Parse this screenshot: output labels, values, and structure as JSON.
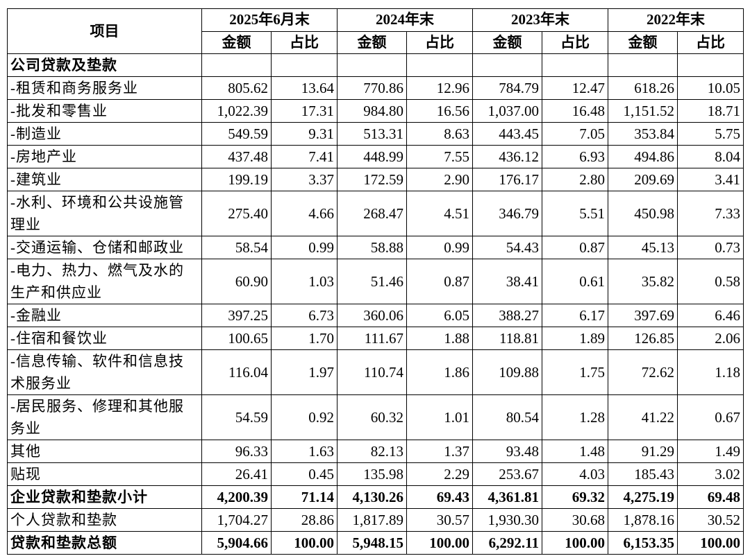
{
  "header": {
    "item": "项目",
    "periods": [
      "2025年6月末",
      "2024年末",
      "2023年末",
      "2022年末"
    ],
    "sub_headers": [
      "金额",
      "占比",
      "金额",
      "占比",
      "金额",
      "占比",
      "金额",
      "占比"
    ]
  },
  "table": {
    "section": "公司贷款及垫款",
    "rows": [
      {
        "label": "-租赁和商务服务业",
        "values": [
          "805.62",
          "13.64",
          "770.86",
          "12.96",
          "784.79",
          "12.47",
          "618.26",
          "10.05"
        ]
      },
      {
        "label": "-批发和零售业",
        "values": [
          "1,022.39",
          "17.31",
          "984.80",
          "16.56",
          "1,037.00",
          "16.48",
          "1,151.52",
          "18.71"
        ]
      },
      {
        "label": "-制造业",
        "values": [
          "549.59",
          "9.31",
          "513.31",
          "8.63",
          "443.45",
          "7.05",
          "353.84",
          "5.75"
        ]
      },
      {
        "label": "-房地产业",
        "values": [
          "437.48",
          "7.41",
          "448.99",
          "7.55",
          "436.12",
          "6.93",
          "494.86",
          "8.04"
        ]
      },
      {
        "label": "-建筑业",
        "values": [
          "199.19",
          "3.37",
          "172.59",
          "2.90",
          "176.17",
          "2.80",
          "209.69",
          "3.41"
        ]
      },
      {
        "label": "-水利、环境和公共设施管理业",
        "values": [
          "275.40",
          "4.66",
          "268.47",
          "4.51",
          "346.79",
          "5.51",
          "450.98",
          "7.33"
        ]
      },
      {
        "label": "-交通运输、仓储和邮政业",
        "values": [
          "58.54",
          "0.99",
          "58.88",
          "0.99",
          "54.43",
          "0.87",
          "45.13",
          "0.73"
        ]
      },
      {
        "label": "-电力、热力、燃气及水的生产和供应业",
        "values": [
          "60.90",
          "1.03",
          "51.46",
          "0.87",
          "38.41",
          "0.61",
          "35.82",
          "0.58"
        ]
      },
      {
        "label": "-金融业",
        "values": [
          "397.25",
          "6.73",
          "360.06",
          "6.05",
          "388.27",
          "6.17",
          "397.69",
          "6.46"
        ]
      },
      {
        "label": "-住宿和餐饮业",
        "values": [
          "100.65",
          "1.70",
          "111.67",
          "1.88",
          "118.81",
          "1.89",
          "126.85",
          "2.06"
        ]
      },
      {
        "label": "-信息传输、软件和信息技术服务业",
        "values": [
          "116.04",
          "1.97",
          "110.74",
          "1.86",
          "109.88",
          "1.75",
          "72.62",
          "1.18"
        ]
      },
      {
        "label": "-居民服务、修理和其他服务业",
        "values": [
          "54.59",
          "0.92",
          "60.32",
          "1.01",
          "80.54",
          "1.28",
          "41.22",
          "0.67"
        ]
      },
      {
        "label": "其他",
        "values": [
          "96.33",
          "1.63",
          "82.13",
          "1.37",
          "93.48",
          "1.48",
          "91.29",
          "1.49"
        ]
      },
      {
        "label": "贴现",
        "values": [
          "26.41",
          "0.45",
          "135.98",
          "2.29",
          "253.67",
          "4.03",
          "185.43",
          "3.02"
        ]
      },
      {
        "label": "企业贷款和垫款小计",
        "values": [
          "4,200.39",
          "71.14",
          "4,130.26",
          "69.43",
          "4,361.81",
          "69.32",
          "4,275.19",
          "69.48"
        ]
      },
      {
        "label": "个人贷款和垫款",
        "values": [
          "1,704.27",
          "28.86",
          "1,817.89",
          "30.57",
          "1,930.30",
          "30.68",
          "1,878.16",
          "30.52"
        ]
      },
      {
        "label": "贷款和垫款总额",
        "values": [
          "5,904.66",
          "100.00",
          "5,948.15",
          "100.00",
          "6,292.11",
          "100.00",
          "6,153.35",
          "100.00"
        ]
      }
    ]
  }
}
